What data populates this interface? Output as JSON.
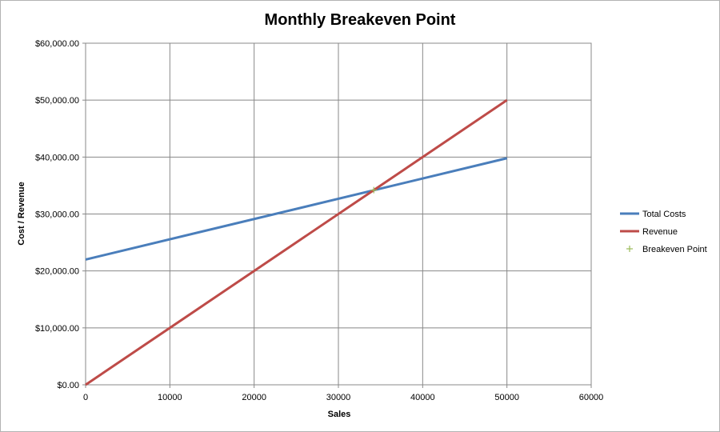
{
  "chart_data": {
    "type": "line",
    "title": "Monthly Breakeven Point",
    "xlabel": "Sales",
    "ylabel": "Cost / Revenue",
    "xlim": [
      0,
      60000
    ],
    "ylim": [
      0,
      60000
    ],
    "x_ticks": [
      "0",
      "10000",
      "20000",
      "30000",
      "40000",
      "50000",
      "60000"
    ],
    "y_ticks": [
      "$0.00",
      "$10,000.00",
      "$20,000.00",
      "$30,000.00",
      "$40,000.00",
      "$50,000.00",
      "$60,000.00"
    ],
    "grid": true,
    "legend_position": "right",
    "series": [
      {
        "name": "Total Costs",
        "kind": "line",
        "color": "#4a7ebb",
        "x": [
          0,
          50000
        ],
        "y": [
          22000,
          39800
        ]
      },
      {
        "name": "Revenue",
        "kind": "line",
        "color": "#be4b48",
        "x": [
          0,
          50000
        ],
        "y": [
          0,
          50000
        ]
      },
      {
        "name": "Breakeven Point",
        "kind": "marker",
        "marker": "plus",
        "color": "#9bbb59",
        "x": [
          34200
        ],
        "y": [
          34200
        ]
      }
    ]
  }
}
